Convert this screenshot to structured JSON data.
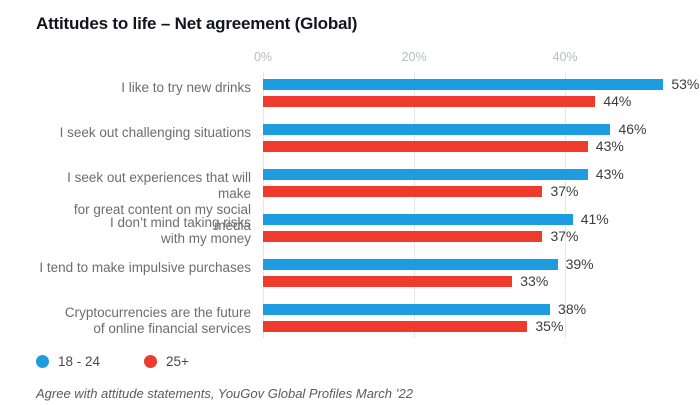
{
  "title": "Attitudes to life – Net agreement (Global)",
  "footer": "Agree with attitude statements, YouGov Global Profiles March ’22",
  "legend": [
    {
      "label": "18 - 24",
      "color": "#1E9CE0"
    },
    {
      "label": "25+",
      "color": "#EE3B2B"
    }
  ],
  "colors": {
    "series_blue": "#1E9CE0",
    "series_red": "#EE3B2B",
    "gridline": "#e4e7ea",
    "axis_text": "#b6bcc4",
    "category_text": "#6d6d6d",
    "value_text": "#3d3d3d"
  },
  "chart_data": {
    "type": "bar",
    "orientation": "horizontal",
    "title": "Attitudes to life – Net agreement (Global)",
    "categories": [
      [
        "I like to try new drinks"
      ],
      [
        "I seek out challenging situations"
      ],
      [
        "I seek out experiences that will make",
        "for great content on my social media"
      ],
      [
        "I don’t mind taking risks",
        "with my money"
      ],
      [
        "I tend to make impulsive purchases"
      ],
      [
        "Cryptocurrencies are the future",
        "of online financial services"
      ]
    ],
    "series": [
      {
        "name": "18 - 24",
        "color": "#1E9CE0",
        "values": [
          53,
          46,
          43,
          41,
          39,
          38
        ]
      },
      {
        "name": "25+",
        "color": "#EE3B2B",
        "values": [
          44,
          43,
          37,
          37,
          33,
          35
        ]
      }
    ],
    "value_suffix": "%",
    "axis": {
      "ticks": [
        "0%",
        "20%",
        "40%"
      ],
      "tick_values": [
        0,
        20,
        40
      ],
      "max": 56,
      "grid": true,
      "legend_position": "bottom"
    }
  }
}
